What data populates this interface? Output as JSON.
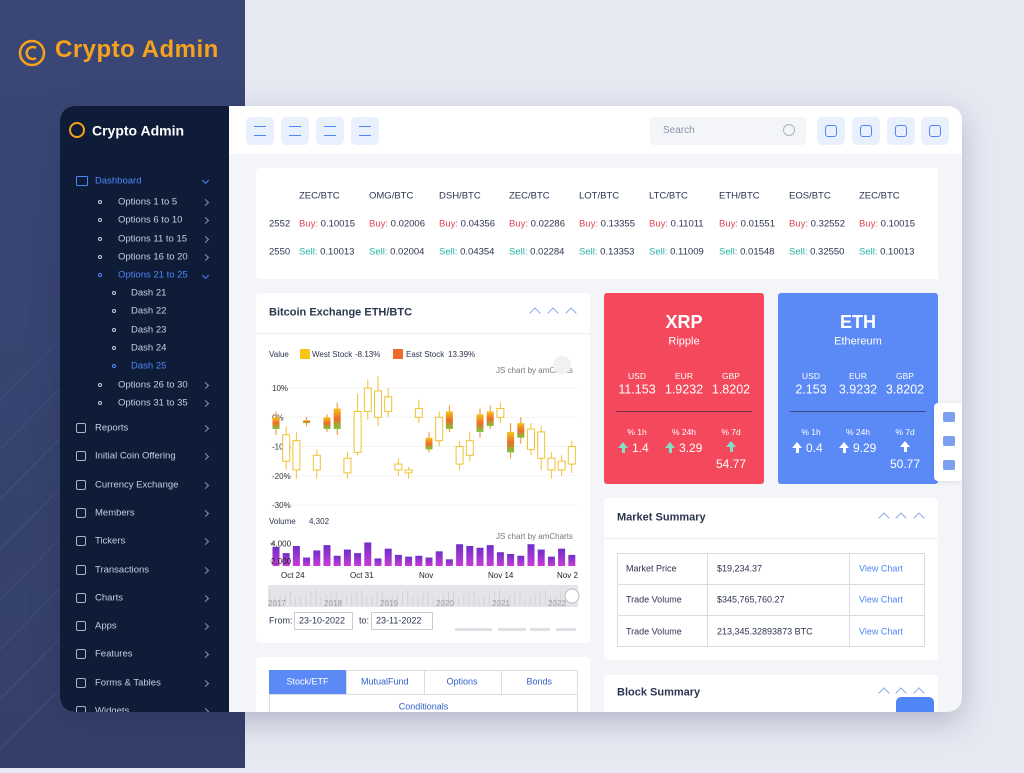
{
  "brand": {
    "title": "Crypto Admin"
  },
  "sidebar": {
    "title": "Crypto Admin",
    "dashboard": "Dashboard",
    "options": [
      "Options 1 to 5",
      "Options 6 to 10",
      "Options 11 to 15",
      "Options 16 to 20",
      "Options 21 to 25",
      "Options 26 to 30",
      "Options 31 to 35"
    ],
    "dash": [
      "Dash 21",
      "Dash 22",
      "Dash 23",
      "Dash 24",
      "Dash 25"
    ],
    "menu": [
      "Reports",
      "Initial Coin Offering",
      "Currency Exchange",
      "Members",
      "Tickers",
      "Transactions",
      "Charts",
      "Apps",
      "Features",
      "Forms & Tables",
      "Widgets"
    ]
  },
  "topbar": {
    "search_placeholder": "Search"
  },
  "ticker": {
    "clipped_buy": "2552",
    "clipped_sell": "2550",
    "buy_label": "Buy:",
    "sell_label": "Sell:",
    "pairs": [
      {
        "pair": "ZEC/BTC",
        "buy": "0.10015",
        "sell": "0.10013"
      },
      {
        "pair": "OMG/BTC",
        "buy": "0.02006",
        "sell": "0.02004"
      },
      {
        "pair": "DSH/BTC",
        "buy": "0.04356",
        "sell": "0.04354"
      },
      {
        "pair": "ZEC/BTC",
        "buy": "0.02286",
        "sell": "0.02284"
      },
      {
        "pair": "LOT/BTC",
        "buy": "0.13355",
        "sell": "0.13353"
      },
      {
        "pair": "LTC/BTC",
        "buy": "0.11011",
        "sell": "0.11009"
      },
      {
        "pair": "ETH/BTC",
        "buy": "0.01551",
        "sell": "0.01548"
      },
      {
        "pair": "EOS/BTC",
        "buy": "0.32552",
        "sell": "0.32550"
      },
      {
        "pair": "ZEC/BTC",
        "buy": "0.10015",
        "sell": "0.10013"
      }
    ]
  },
  "exchange": {
    "title": "Bitcoin Exchange ETH/BTC",
    "legend_label": "Value",
    "legend": [
      {
        "name": "West Stock",
        "change": "-8.13%",
        "color": "#f5c518"
      },
      {
        "name": "East Stock",
        "change": "13.39%",
        "color": "#f06a2a"
      }
    ],
    "credit": "JS chart by amCharts",
    "ylim": [
      -33,
      15
    ],
    "yticks": [
      {
        "value": 10,
        "label": "10%"
      },
      {
        "value": 0,
        "label": "0%"
      },
      {
        "value": -10,
        "label": "-10%"
      },
      {
        "value": -20,
        "label": "-20%"
      },
      {
        "value": -30,
        "label": "-30%"
      }
    ],
    "candles": {
      "open": [
        0,
        -15,
        -18,
        -1,
        -18,
        0,
        3,
        -19,
        -12,
        2,
        0,
        2,
        -18,
        -19,
        0,
        -7,
        -8,
        2,
        -16,
        -13,
        1,
        2,
        0,
        -5,
        -2,
        -11,
        -14,
        -18,
        -18,
        -16
      ],
      "close": [
        -4,
        -6,
        -8,
        -2,
        -13,
        -4,
        -4,
        -14,
        2,
        10,
        9,
        7,
        -16,
        -18,
        3,
        -11,
        0,
        -4,
        -10,
        -8,
        -5,
        -3,
        3,
        -12,
        -7,
        -4,
        -5,
        -14,
        -15,
        -10
      ],
      "high": [
        2,
        -3,
        -5,
        0,
        -11,
        1,
        5,
        -12,
        8,
        13,
        14,
        10,
        -14,
        -17,
        6,
        -5,
        2,
        4,
        -8,
        -5,
        3,
        4,
        5,
        -2,
        0,
        -2,
        -3,
        -12,
        -13,
        -8
      ],
      "low": [
        -6,
        -18,
        -21,
        -3,
        -21,
        -5,
        -6,
        -21,
        -13,
        -1,
        -3,
        0,
        -20,
        -21,
        -2,
        -12,
        -10,
        -5,
        -18,
        -15,
        -7,
        -4,
        -2,
        -14,
        -9,
        -13,
        -18,
        -21,
        -20,
        -19
      ]
    },
    "volume_label": "Volume",
    "volume_value": "4,302",
    "volume_ylim": [
      1450,
      4600
    ],
    "volume_ticks": [
      {
        "value": 4000,
        "label": "4,000"
      },
      {
        "value": 2000,
        "label": "2,000"
      }
    ],
    "volume": [
      3600,
      2900,
      3700,
      2400,
      3200,
      3800,
      2600,
      3300,
      2900,
      4100,
      2300,
      3400,
      2700,
      2500,
      2600,
      2400,
      3100,
      2200,
      3900,
      3700,
      3500,
      3800,
      3000,
      2800,
      2600,
      3900,
      3300,
      2500,
      3400,
      2700
    ],
    "dates": [
      "Oct 24",
      "Oct 31",
      "Nov",
      "Nov 14",
      "Nov 2"
    ],
    "years": [
      "2017",
      "2018",
      "2019",
      "2020",
      "2021",
      "2022"
    ],
    "from_label": "From:",
    "from": "23-10-2022",
    "to_label": "to:",
    "to": "23-11-2022"
  },
  "cards": [
    {
      "symbol": "XRP",
      "name": "Ripple",
      "currencies": [
        "USD",
        "EUR",
        "GBP"
      ],
      "prices": [
        "11.153",
        "1.9232",
        "1.8202"
      ],
      "periods": [
        "% 1h",
        "% 24h",
        "% 7d"
      ],
      "changes": [
        "1.4",
        "3.29",
        "54.77"
      ],
      "color": "#f4495d"
    },
    {
      "symbol": "ETH",
      "name": "Ethereum",
      "currencies": [
        "USD",
        "EUR",
        "GBP"
      ],
      "prices": [
        "2.153",
        "3.9232",
        "3.8202"
      ],
      "periods": [
        "% 1h",
        "% 24h",
        "% 7d"
      ],
      "changes": [
        "0.4",
        "9.29",
        "50.77"
      ],
      "color": "#5b8af7"
    }
  ],
  "market_summary": {
    "title": "Market Summary",
    "rows": [
      [
        "Market Price",
        "$19,234.37",
        "View Chart"
      ],
      [
        "Trade Volume",
        "$345,765,760.27",
        "View Chart"
      ],
      [
        "Trade Volume",
        "213,345.32893873 BTC",
        "View Chart"
      ]
    ]
  },
  "block_summary": {
    "title": "Block Summary"
  },
  "tabs": {
    "items": [
      "Stock/ETF",
      "MutualFund",
      "Options",
      "Bonds"
    ],
    "sub": "Conditionals"
  }
}
